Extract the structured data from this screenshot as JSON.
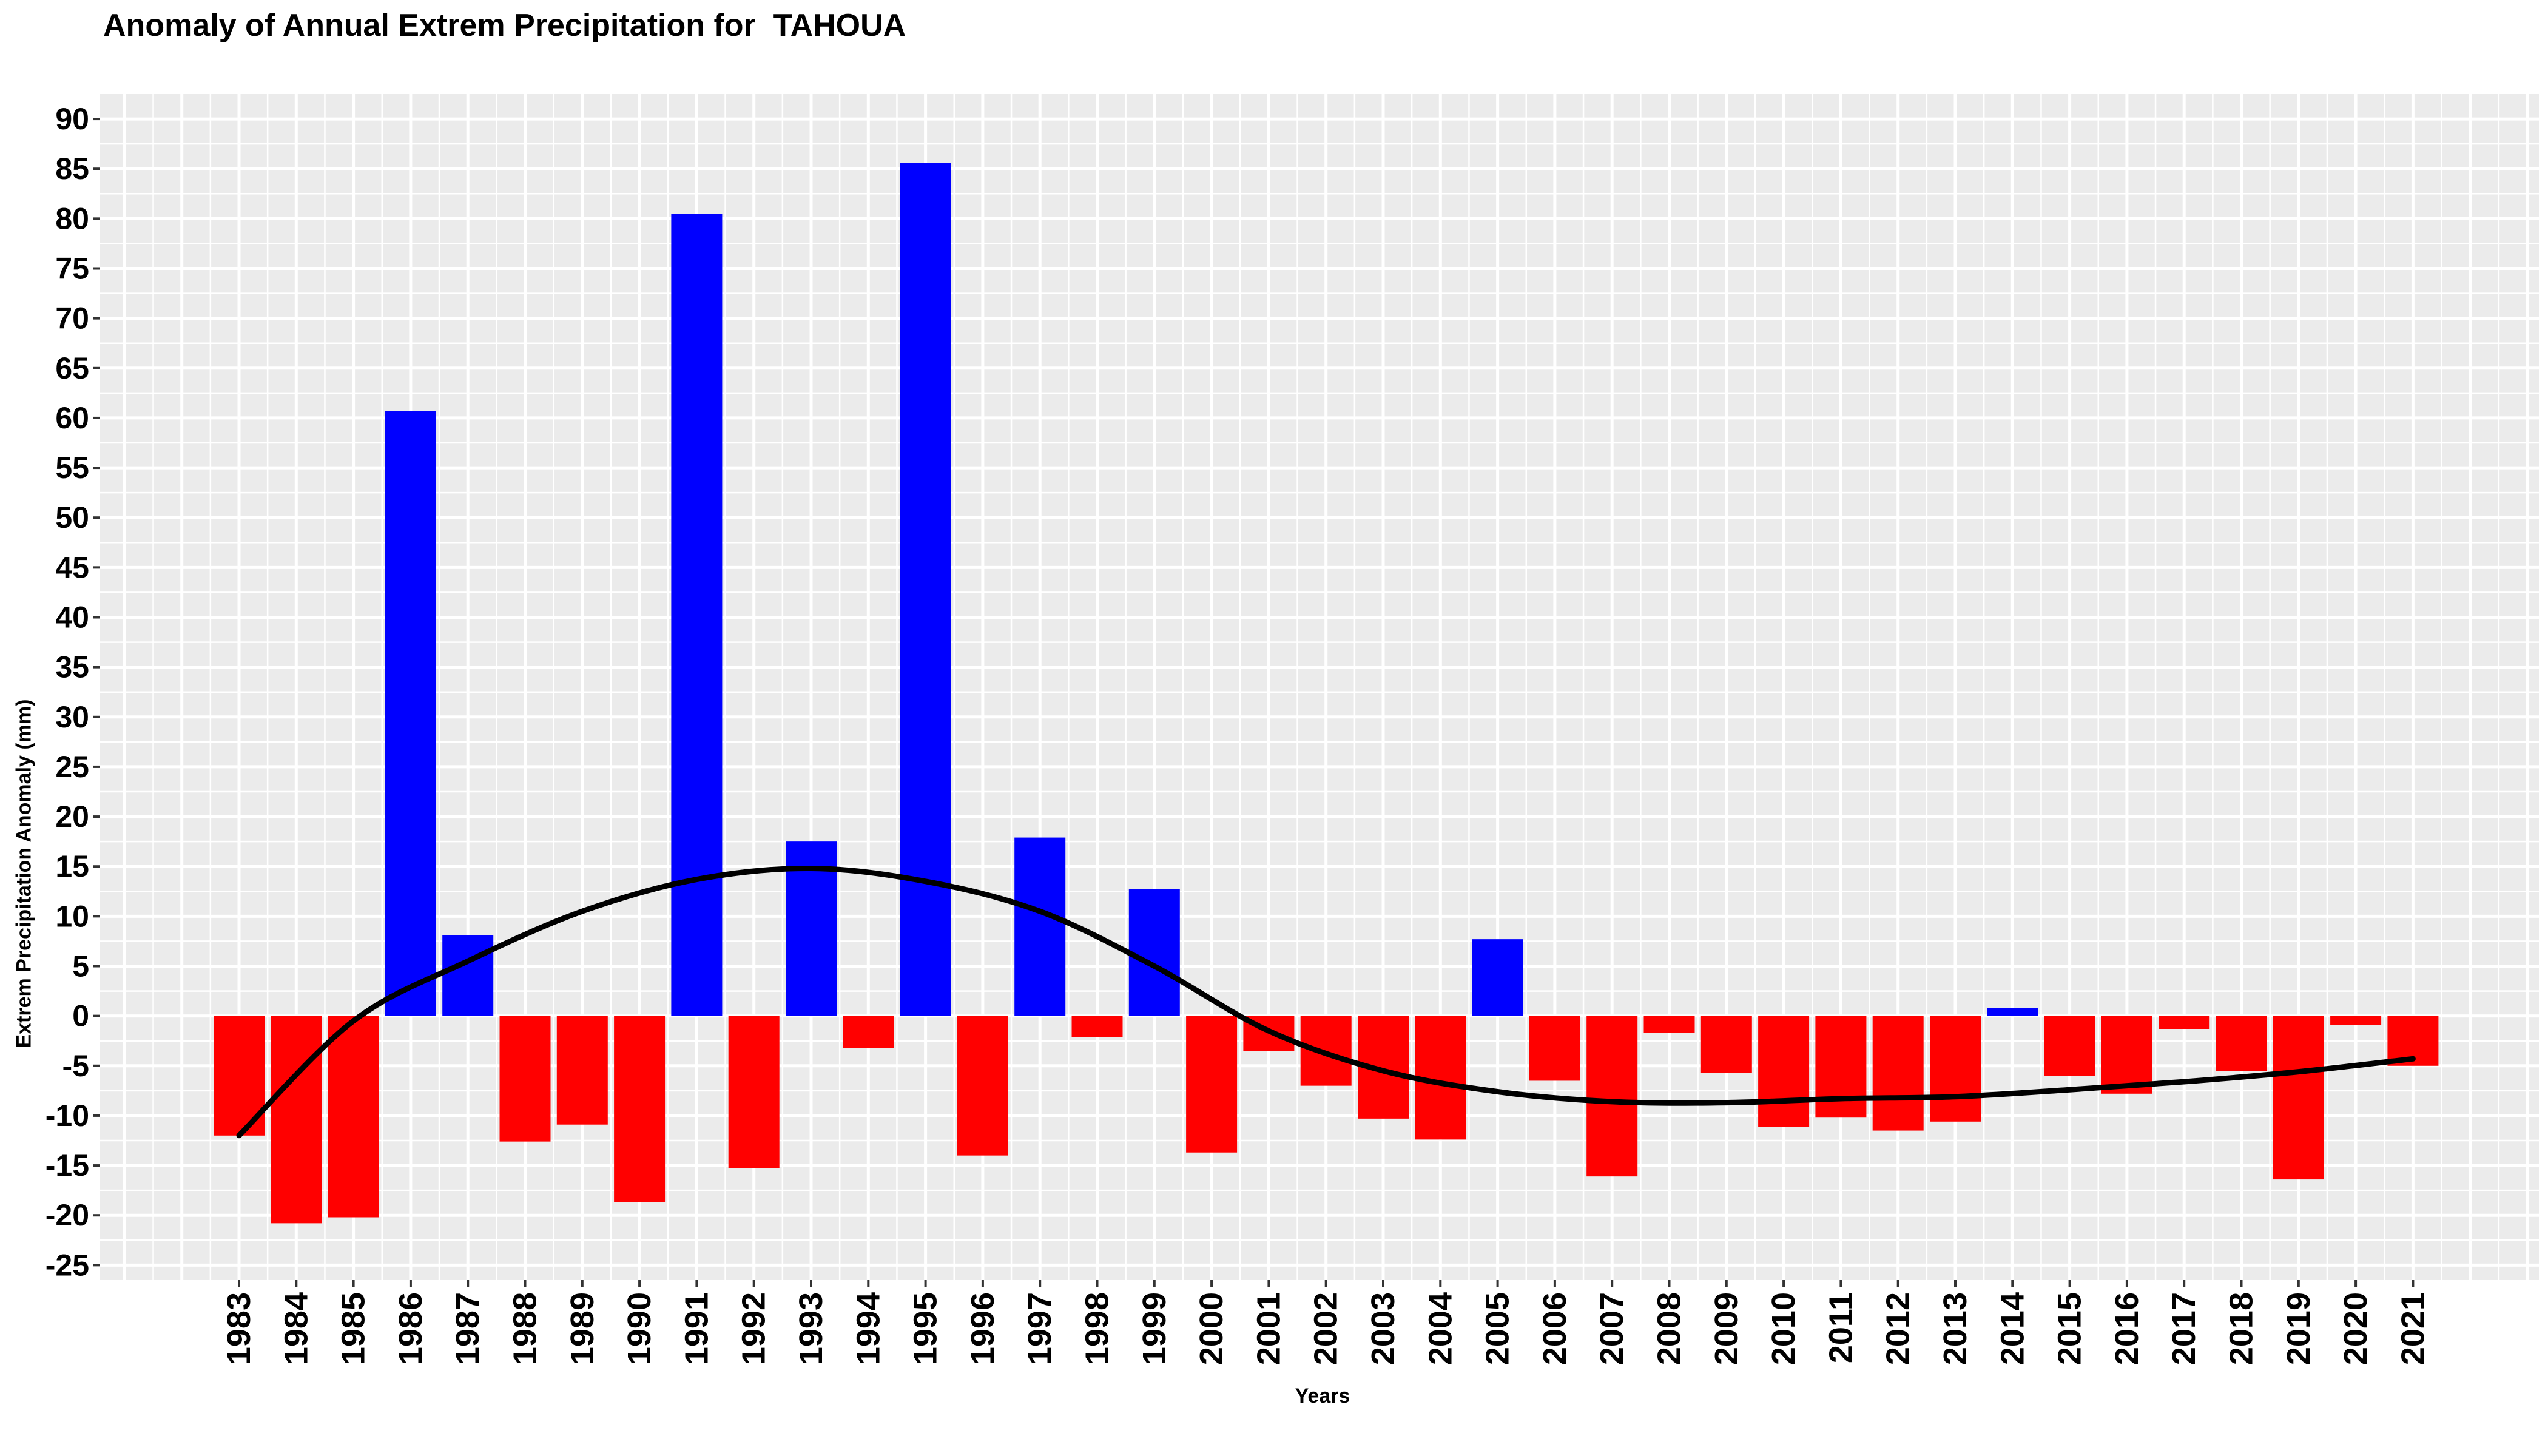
{
  "chart_data": {
    "type": "bar",
    "title": "Anomaly of Annual Extrem Precipitation for  TAHOUA",
    "xlabel": "Years",
    "ylabel": "Extrem Precipitation Anomaly (mm)",
    "ylim": [
      -25,
      90
    ],
    "yticks": [
      90,
      85,
      80,
      75,
      70,
      65,
      60,
      55,
      50,
      45,
      40,
      35,
      30,
      25,
      20,
      15,
      10,
      5,
      0,
      -5,
      -10,
      -15,
      -20,
      -25
    ],
    "grid": true,
    "legend": "none",
    "colors": {
      "positive": "#0000ff",
      "negative": "#ff0000",
      "trend": "#000000",
      "panel": "#ebebeb",
      "grid": "#ffffff"
    },
    "categories": [
      "1983",
      "1984",
      "1985",
      "1986",
      "1987",
      "1988",
      "1989",
      "1990",
      "1991",
      "1992",
      "1993",
      "1994",
      "1995",
      "1996",
      "1997",
      "1998",
      "1999",
      "2000",
      "2001",
      "2002",
      "2003",
      "2004",
      "2005",
      "2006",
      "2007",
      "2008",
      "2009",
      "2010",
      "2011",
      "2012",
      "2013",
      "2014",
      "2015",
      "2016",
      "2017",
      "2018",
      "2019",
      "2020",
      "2021"
    ],
    "values": [
      -12,
      -20.8,
      -20.2,
      60.7,
      8.1,
      -12.6,
      -10.9,
      -18.7,
      80.5,
      -15.3,
      17.5,
      -3.2,
      85.6,
      -14,
      17.9,
      -2.1,
      12.7,
      -13.7,
      -3.5,
      -7,
      -10.3,
      -12.4,
      7.7,
      -6.5,
      -16.1,
      -1.7,
      -5.7,
      -11.1,
      -10.2,
      -11.5,
      -10.6,
      0.8,
      -6,
      -7.8,
      -1.3,
      -5.5,
      -16.4,
      -0.9,
      -5
    ],
    "trend": {
      "x": [
        "1983",
        "1985",
        "1987",
        "1989",
        "1991",
        "1993",
        "1995",
        "1997",
        "1999",
        "2001",
        "2003",
        "2005",
        "2007",
        "2009",
        "2011",
        "2013",
        "2015",
        "2017",
        "2019",
        "2021"
      ],
      "values": [
        -12,
        -0.5,
        5.5,
        10.5,
        13.7,
        14.8,
        13.5,
        10.5,
        5,
        -1.5,
        -5.5,
        -7.6,
        -8.6,
        -8.7,
        -8.3,
        -8.1,
        -7.4,
        -6.6,
        -5.6,
        -4.3
      ]
    }
  }
}
